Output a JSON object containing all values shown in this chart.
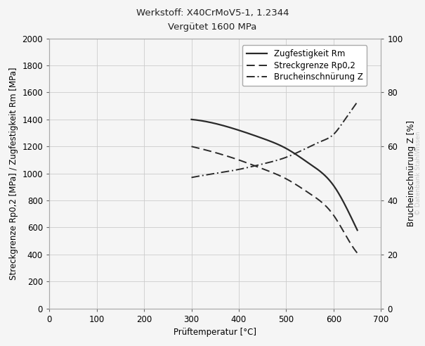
{
  "title": "Werkstoff: X40CrMoV5-1, 1.2344",
  "subtitle": "Vergütet 1600 MPa",
  "xlabel": "Prüftemperatur [°C]",
  "ylabel_left": "Streckgrenze Rp0,2 [MPa] / Zugfestigkeit Rm [MPa]",
  "ylabel_right": "Brucheinschnürung Z [%]",
  "watermark": "© Datenbank StahlWissen",
  "xlim": [
    0,
    700
  ],
  "ylim_left": [
    0,
    2000
  ],
  "ylim_right": [
    0,
    100
  ],
  "xticks": [
    0,
    100,
    200,
    300,
    400,
    500,
    600,
    700
  ],
  "yticks_left": [
    0,
    200,
    400,
    600,
    800,
    1000,
    1200,
    1400,
    1600,
    1800,
    2000
  ],
  "yticks_right": [
    0,
    20,
    40,
    60,
    80,
    100
  ],
  "Rm_x": [
    300,
    350,
    400,
    450,
    500,
    550,
    600,
    625,
    650
  ],
  "Rm_y": [
    1400,
    1370,
    1320,
    1260,
    1185,
    1070,
    910,
    760,
    580
  ],
  "Rp02_x": [
    300,
    350,
    400,
    450,
    500,
    550,
    600,
    625,
    650
  ],
  "Rp02_y": [
    1200,
    1155,
    1100,
    1035,
    960,
    850,
    690,
    545,
    410
  ],
  "Z_x": [
    300,
    350,
    400,
    450,
    500,
    550,
    575,
    600,
    620,
    640,
    650
  ],
  "Z_y": [
    48.5,
    50,
    51.5,
    53.5,
    56,
    60,
    62,
    64.5,
    69,
    74,
    76.5
  ],
  "legend_labels": [
    "Zugfestigkeit Rm",
    "Streckgrenze Rp0,2",
    "Brucheinschnürung Z"
  ],
  "line_color": "#2a2a2a",
  "background_color": "#f5f5f5",
  "grid_color": "#cccccc",
  "title_fontsize": 9.5,
  "subtitle_fontsize": 9.5,
  "label_fontsize": 8.5,
  "tick_fontsize": 8.5,
  "legend_fontsize": 8.5,
  "watermark_fontsize": 6.5
}
